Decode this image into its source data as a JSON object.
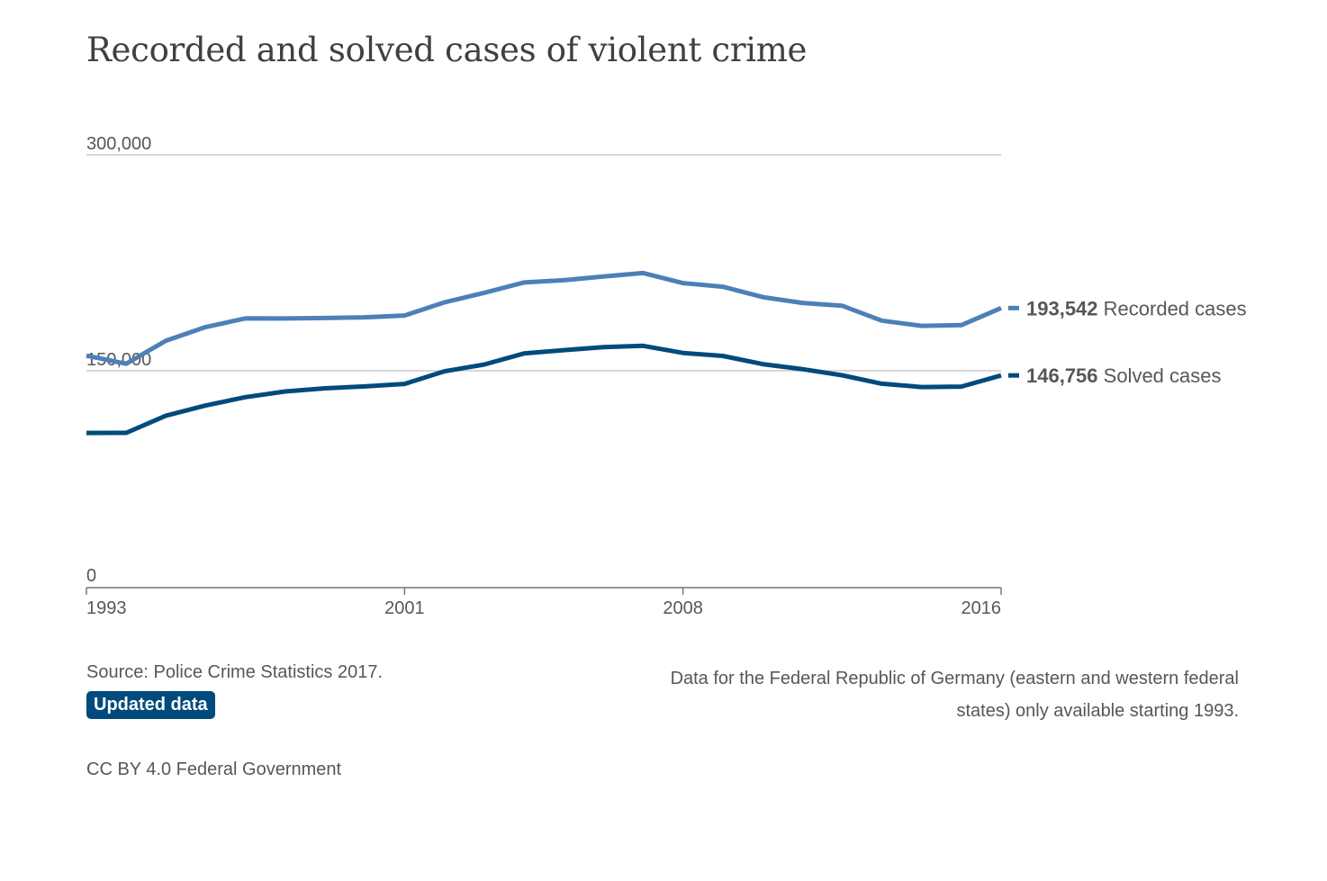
{
  "title": "Recorded and solved cases of violent crime",
  "chart_data": {
    "type": "line",
    "x": [
      1993,
      1994,
      1995,
      1996,
      1997,
      1998,
      1999,
      2000,
      2001,
      2002,
      2003,
      2004,
      2005,
      2006,
      2007,
      2008,
      2009,
      2010,
      2011,
      2012,
      2013,
      2014,
      2015,
      2016
    ],
    "xticks": [
      "1993",
      "2001",
      "2008",
      "2016"
    ],
    "yticks": [
      "0",
      "150,000",
      "300,000"
    ],
    "ylim": [
      0,
      300000
    ],
    "grid": true,
    "series": [
      {
        "name": "Recorded cases",
        "color": "#4d80b7",
        "values": [
          160500,
          154900,
          170900,
          180400,
          186400,
          186300,
          186600,
          187100,
          188400,
          197500,
          204100,
          211300,
          212900,
          215500,
          217900,
          210900,
          208400,
          201200,
          197100,
          195200,
          184800,
          181200,
          181700,
          193542
        ],
        "end_value_label": "193,542"
      },
      {
        "name": "Solved cases",
        "color": "#004b7c",
        "values": [
          106800,
          106900,
          118800,
          125900,
          131700,
          135600,
          137800,
          139100,
          140900,
          149600,
          154300,
          162000,
          164300,
          166400,
          167300,
          162400,
          160300,
          154600,
          151100,
          146900,
          141000,
          138700,
          139000,
          146756
        ],
        "end_value_label": "146,756"
      }
    ]
  },
  "footer": {
    "source": "Source: Police Crime Statistics 2017.",
    "badge": "Updated data",
    "note": "Data for the Federal Republic of Germany (eastern and western federal states) only available starting 1993.",
    "license": "CC BY 4.0 Federal Government"
  }
}
